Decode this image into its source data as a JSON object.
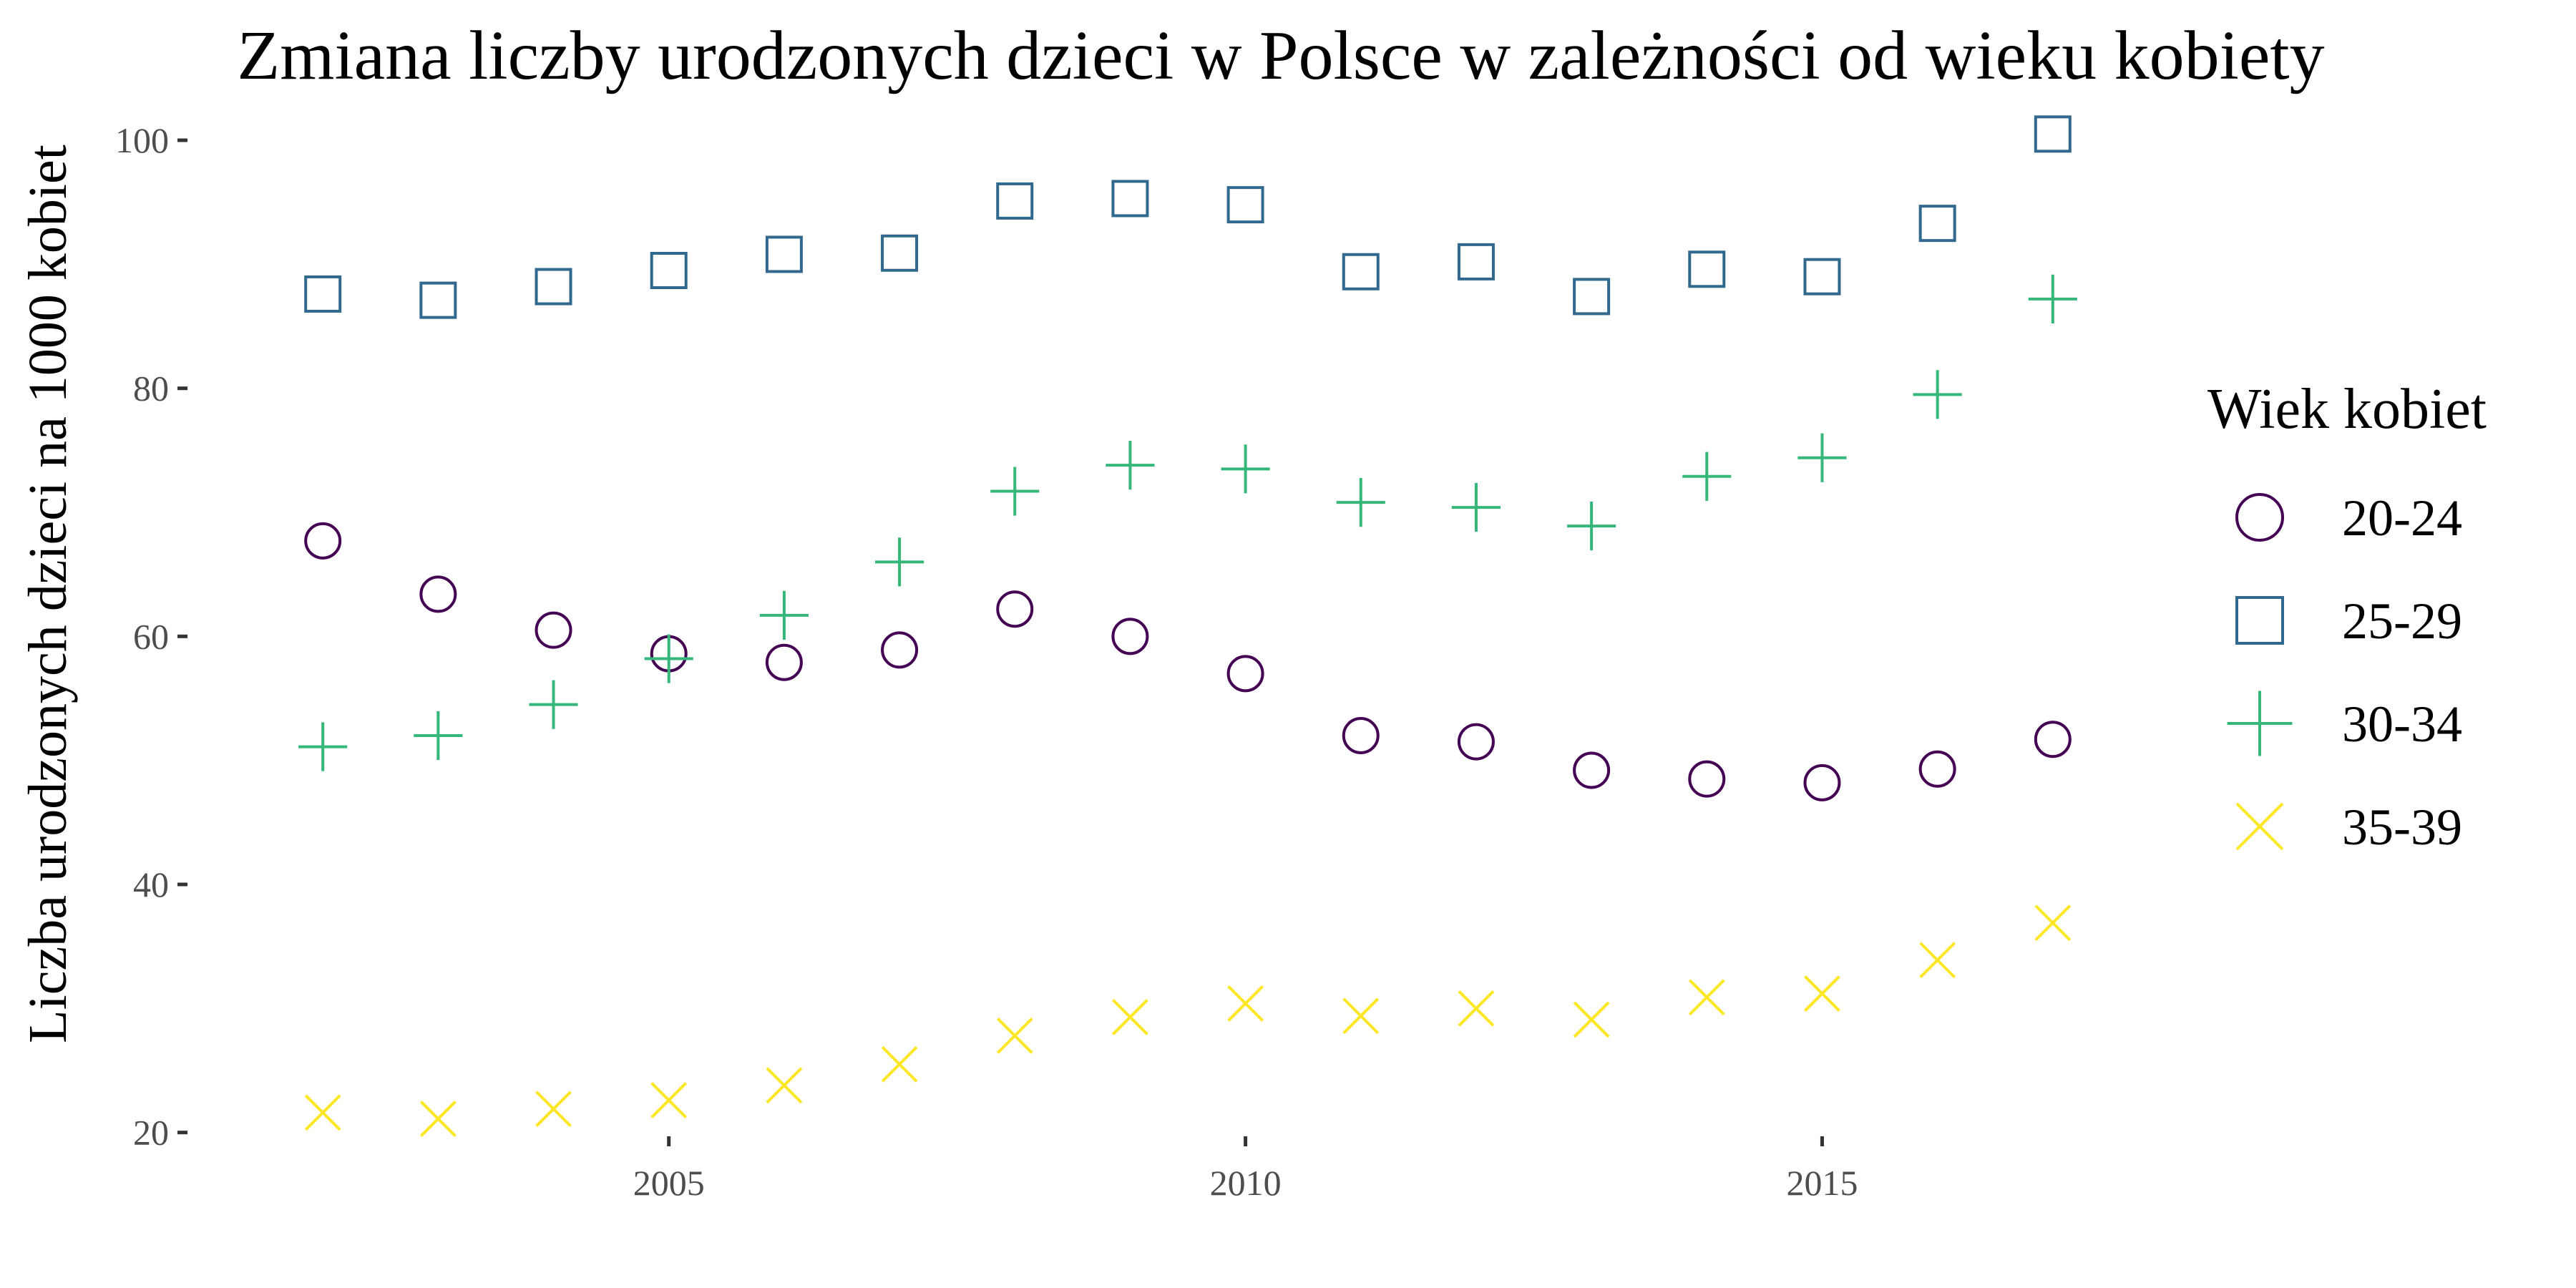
{
  "chart_data": {
    "type": "scatter",
    "title": "Zmiana liczby urodzonych dzieci w Polsce w zależności od wieku kobiety",
    "xlabel": "",
    "ylabel": "Liczba urodzonych dzieci na 1000 kobiet",
    "x": [
      2002,
      2003,
      2004,
      2005,
      2006,
      2007,
      2008,
      2009,
      2010,
      2011,
      2012,
      2013,
      2014,
      2015,
      2016,
      2017
    ],
    "xlim": [
      2001,
      2018
    ],
    "ylim": [
      19,
      101.5
    ],
    "x_ticks": [
      "2005",
      "2010",
      "2015"
    ],
    "y_ticks": [
      "20",
      "40",
      "60",
      "80",
      "100"
    ],
    "grid": false,
    "legend": {
      "title": "Wiek kobiet",
      "position": "right"
    },
    "series": [
      {
        "name": "20-24",
        "shape": "circle",
        "color": "#440154",
        "values": [
          67.7,
          63.4,
          60.5,
          58.6,
          57.9,
          58.9,
          62.2,
          60.0,
          57.0,
          52.0,
          51.5,
          49.2,
          48.5,
          48.2,
          49.3,
          51.7
        ]
      },
      {
        "name": "25-29",
        "shape": "square",
        "color": "#31688E",
        "values": [
          87.6,
          87.1,
          88.2,
          89.5,
          90.8,
          90.9,
          95.1,
          95.3,
          94.8,
          89.4,
          90.2,
          87.4,
          89.6,
          89.0,
          93.3,
          100.5
        ]
      },
      {
        "name": "30-34",
        "shape": "plus",
        "color": "#35B779",
        "values": [
          51.1,
          52.0,
          54.5,
          58.2,
          61.7,
          66.0,
          71.7,
          73.8,
          73.5,
          70.8,
          70.4,
          68.9,
          72.9,
          74.4,
          79.5,
          87.2
        ]
      },
      {
        "name": "35-39",
        "shape": "cross",
        "color": "#FDE725",
        "values": [
          21.6,
          21.1,
          21.9,
          22.6,
          23.8,
          25.5,
          27.8,
          29.3,
          30.4,
          29.4,
          30.0,
          29.1,
          30.9,
          31.2,
          33.9,
          36.9
        ]
      }
    ]
  }
}
